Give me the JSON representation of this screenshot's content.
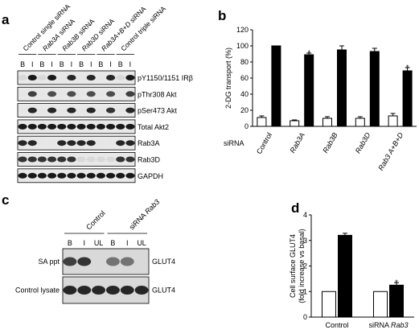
{
  "panels": {
    "a": {
      "letter": "a",
      "lane_labels": [
        {
          "parts": [
            {
              "t": "Control single siRNA",
              "i": false
            }
          ]
        },
        {
          "parts": [
            {
              "t": "Rab3A",
              "i": true
            },
            {
              "t": " siRNA",
              "i": false
            }
          ]
        },
        {
          "parts": [
            {
              "t": "Rab3B",
              "i": true
            },
            {
              "t": " siRNA",
              "i": false
            }
          ]
        },
        {
          "parts": [
            {
              "t": "Rab3D",
              "i": true
            },
            {
              "t": " siRNA",
              "i": false
            }
          ]
        },
        {
          "parts": [
            {
              "t": "Rab3A+B+D",
              "i": true
            },
            {
              "t": " siRNA",
              "i": false
            }
          ]
        },
        {
          "parts": [
            {
              "t": "Control triple siRNA",
              "i": false
            }
          ]
        }
      ],
      "bi_labels": [
        "B",
        "I",
        "B",
        "I",
        "B",
        "I",
        "B",
        "I",
        "B",
        "I",
        "B",
        "I"
      ],
      "blot_rows": [
        {
          "label": "pY1150/1151 IRβ",
          "bands": [
            0.15,
            0.9,
            0.15,
            0.9,
            0.1,
            0.85,
            0.1,
            0.85,
            0.1,
            0.85,
            0.15,
            0.9
          ]
        },
        {
          "label": "pThr308 Akt",
          "bands": [
            0.1,
            0.75,
            0.1,
            0.7,
            0.1,
            0.7,
            0.1,
            0.7,
            0.1,
            0.7,
            0.1,
            0.75
          ]
        },
        {
          "label": "pSer473 Akt",
          "bands": [
            0.1,
            0.85,
            0.1,
            0.85,
            0.1,
            0.85,
            0.1,
            0.85,
            0.1,
            0.8,
            0.1,
            0.85
          ]
        },
        {
          "label": "Total Akt2",
          "bands": [
            0.9,
            0.9,
            0.9,
            0.9,
            0.9,
            0.9,
            0.9,
            0.9,
            0.9,
            0.9,
            0.9,
            0.9
          ]
        },
        {
          "label": "Rab3A",
          "bands": [
            0.85,
            0.85,
            0.1,
            0.1,
            0.85,
            0.85,
            0.85,
            0.85,
            0.1,
            0.1,
            0.85,
            0.85
          ]
        },
        {
          "label": "Rab3D",
          "bands": [
            0.8,
            0.8,
            0.8,
            0.8,
            0.8,
            0.8,
            0.15,
            0.15,
            0.15,
            0.15,
            0.8,
            0.8
          ]
        },
        {
          "label": "GAPDH",
          "bands": [
            0.9,
            0.9,
            0.9,
            0.9,
            0.9,
            0.9,
            0.9,
            0.9,
            0.9,
            0.9,
            0.9,
            0.9
          ]
        }
      ]
    },
    "b": {
      "letter": "b",
      "row_label": "siRNA"
    },
    "c": {
      "letter": "c",
      "group_labels": [
        {
          "parts": [
            {
              "t": "Control",
              "i": false
            }
          ]
        },
        {
          "parts": [
            {
              "t": "siRNA ",
              "i": false
            },
            {
              "t": "Rab3",
              "i": true
            }
          ]
        }
      ],
      "lane_labels": [
        "B",
        "I",
        "UL",
        "B",
        "I",
        "UL"
      ],
      "rows": [
        {
          "left_label": "SA ppt",
          "right_label": "GLUT4",
          "bands": [
            0.75,
            0.8,
            0.15,
            0.55,
            0.55,
            0.15
          ]
        },
        {
          "left_label": "Control lysate",
          "right_label": "GLUT4",
          "bands": [
            0.85,
            0.85,
            0.85,
            0.85,
            0.85,
            0.85
          ]
        }
      ]
    },
    "d": {
      "letter": "d"
    }
  },
  "chart_data": [
    {
      "type": "bar",
      "panel": "b",
      "ylabel": "2-DG transport (%)",
      "ylim": [
        0,
        120
      ],
      "yticks": [
        0,
        20,
        40,
        60,
        80,
        100,
        120
      ],
      "categories": [
        {
          "parts": [
            {
              "t": "Control",
              "i": false
            }
          ]
        },
        {
          "parts": [
            {
              "t": "Rab3A",
              "i": true
            }
          ]
        },
        {
          "parts": [
            {
              "t": "Rab3B",
              "i": true
            }
          ]
        },
        {
          "parts": [
            {
              "t": "Rab3D",
              "i": true
            }
          ]
        },
        {
          "parts": [
            {
              "t": "Rab3 A+B+D",
              "i": true
            }
          ]
        }
      ],
      "series": [
        {
          "fill": "#ffffff",
          "values": [
            11,
            7,
            10,
            10,
            13
          ],
          "errors": [
            2,
            1,
            2,
            2,
            3
          ]
        },
        {
          "fill": "#000000",
          "values": [
            100,
            89,
            95,
            93,
            69
          ],
          "errors": [
            0,
            2,
            5,
            4,
            4
          ]
        }
      ],
      "annotations": [
        {
          "category_index": 1,
          "series_index": 1,
          "text": "*"
        },
        {
          "category_index": 4,
          "series_index": 1,
          "text": "*"
        }
      ]
    },
    {
      "type": "bar",
      "panel": "d",
      "ylabel": [
        "Cell surface GLUT4",
        "(fold increase vs basal)"
      ],
      "ylim": [
        0,
        4
      ],
      "yticks": [
        0,
        1,
        2,
        3,
        4
      ],
      "categories": [
        {
          "parts": [
            {
              "t": "Control",
              "i": false
            }
          ]
        },
        {
          "parts": [
            {
              "t": "siRNA ",
              "i": false
            },
            {
              "t": "Rab3",
              "i": true
            }
          ]
        }
      ],
      "series": [
        {
          "fill": "#ffffff",
          "values": [
            1.0,
            1.0
          ],
          "errors": [
            0,
            0
          ]
        },
        {
          "fill": "#000000",
          "values": [
            3.2,
            1.25
          ],
          "errors": [
            0.08,
            0.1
          ]
        }
      ],
      "annotations": [
        {
          "category_index": 1,
          "series_index": 1,
          "text": "*"
        }
      ]
    }
  ]
}
